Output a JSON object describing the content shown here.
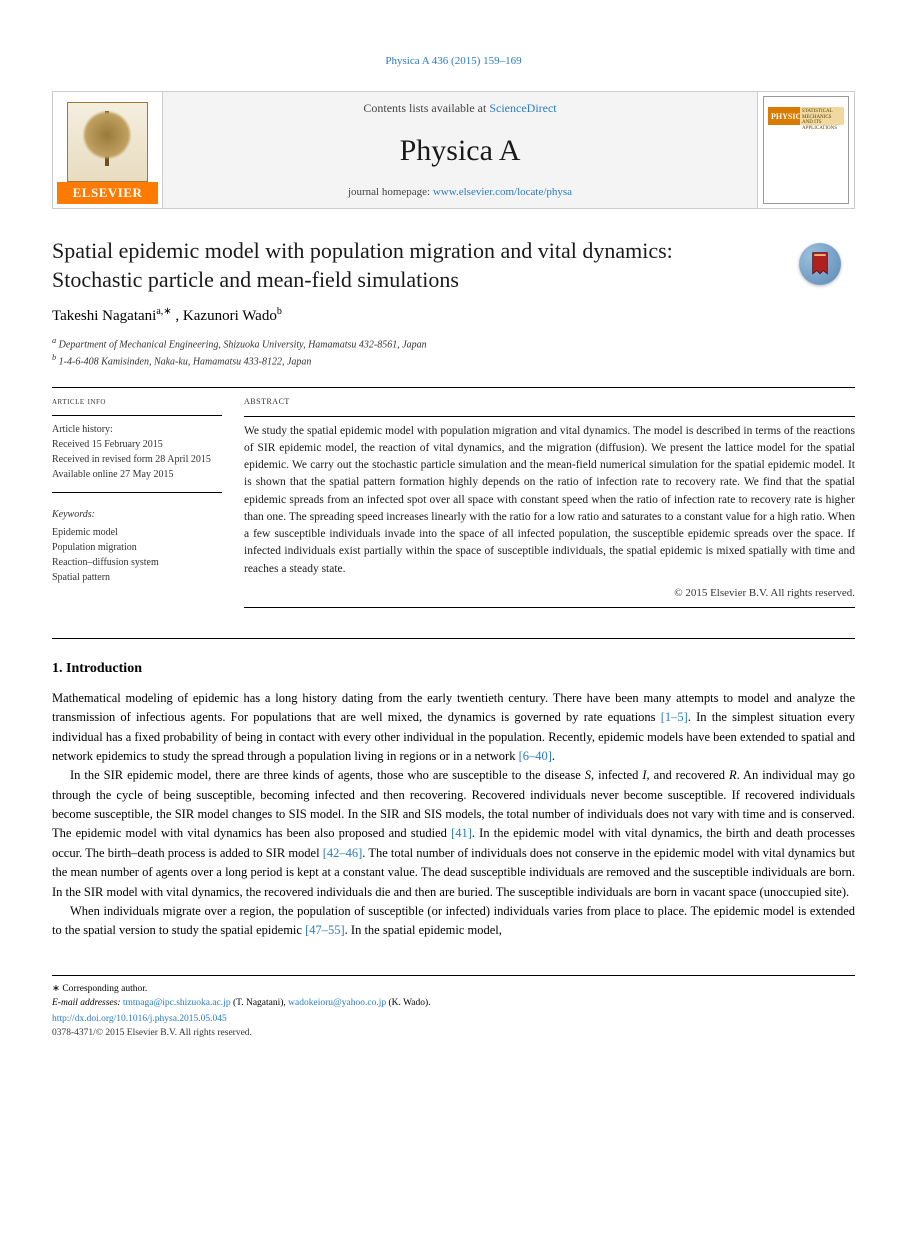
{
  "citation": "Physica A 436 (2015) 159–169",
  "header": {
    "contents_prefix": "Contents lists available at ",
    "contents_link": "ScienceDirect",
    "journal_name": "Physica A",
    "homepage_prefix": "journal homepage: ",
    "homepage_link": "www.elsevier.com/locate/physa",
    "elsevier_label": "ELSEVIER",
    "cover_label": "PHYSICA",
    "cover_sub": "STATISTICAL MECHANICS AND ITS APPLICATIONS"
  },
  "title": "Spatial epidemic model with population migration and vital dynamics: Stochastic particle and mean-field simulations",
  "authors": [
    {
      "name": "Takeshi Nagatani",
      "aff": "a",
      "corr": true
    },
    {
      "name": "Kazunori Wado",
      "aff": "b"
    }
  ],
  "affiliations": [
    {
      "label": "a",
      "text": "Department of Mechanical Engineering, Shizuoka University, Hamamatsu 432-8561, Japan"
    },
    {
      "label": "b",
      "text": "1-4-6-408 Kamisinden, Naka-ku, Hamamatsu 433-8122, Japan"
    }
  ],
  "history": {
    "head": "article info",
    "items": [
      "Article history:",
      "Received 15 February 2015",
      "Received in revised form 28 April 2015",
      "Available online 27 May 2015"
    ],
    "keywords_head": "Keywords:",
    "keywords": [
      "Epidemic model",
      "Population migration",
      "Reaction–diffusion system",
      "Spatial pattern"
    ]
  },
  "abstract": {
    "head": "abstract",
    "text": "We study the spatial epidemic model with population migration and vital dynamics. The model is described in terms of the reactions of SIR epidemic model, the reaction of vital dynamics, and the migration (diffusion). We present the lattice model for the spatial epidemic. We carry out the stochastic particle simulation and the mean-field numerical simulation for the spatial epidemic model. It is shown that the spatial pattern formation highly depends on the ratio of infection rate to recovery rate. We find that the spatial epidemic spreads from an infected spot over all space with constant speed when the ratio of infection rate to recovery rate is higher than one. The spreading speed increases linearly with the ratio for a low ratio and saturates to a constant value for a high ratio. When a few susceptible individuals invade into the space of all infected population, the susceptible epidemic spreads over the space. If infected individuals exist partially within the space of susceptible individuals, the spatial epidemic is mixed spatially with time and reaches a steady state."
  },
  "rights": "© 2015 Elsevier B.V. All rights reserved.",
  "section": {
    "head": "1. Introduction",
    "paragraphs": [
      {
        "indent": false,
        "segments": [
          {
            "t": "Mathematical modeling of epidemic has a long history dating from the early twentieth century. There have been many attempts to model and analyze the transmission of infectious agents. For populations that are well mixed, the dynamics is governed by rate equations "
          },
          {
            "ref": "[1–5]"
          },
          {
            "t": ". In the simplest situation every individual has a fixed probability of being in contact with every other individual in the population. Recently, epidemic models have been extended to spatial and network epidemics to study the spread through a population living in regions or in a network "
          },
          {
            "ref": "[6–40]"
          },
          {
            "t": "."
          }
        ]
      },
      {
        "indent": true,
        "segments": [
          {
            "t": "In the SIR epidemic model, there are three kinds of agents, those who are susceptible to the disease "
          },
          {
            "i": "S"
          },
          {
            "t": ", infected "
          },
          {
            "i": "I"
          },
          {
            "t": ", and recovered "
          },
          {
            "i": "R"
          },
          {
            "t": ". An individual may go through the cycle of being susceptible, becoming infected and then recovering. Recovered individuals never become susceptible. If recovered individuals become susceptible, the SIR model changes to SIS model. In the SIR and SIS models, the total number of individuals does not vary with time and is conserved. The epidemic model with vital dynamics has been also proposed and studied "
          },
          {
            "ref": "[41]"
          },
          {
            "t": ". In the epidemic model with vital dynamics, the birth and death processes occur. The birth–death process is added to SIR model "
          },
          {
            "ref": "[42–46]"
          },
          {
            "t": ". The total number of individuals does not conserve in the epidemic model with vital dynamics but the mean number of agents over a long period is kept at a constant value. The dead susceptible individuals are removed and the susceptible individuals are born. In the SIR model with vital dynamics, the recovered individuals die and then are buried. The susceptible individuals are born in vacant space (unoccupied site)."
          }
        ]
      },
      {
        "indent": true,
        "segments": [
          {
            "t": "When individuals migrate over a region, the population of susceptible (or infected) individuals varies from place to place. The epidemic model is extended to the spatial version to study the spatial epidemic "
          },
          {
            "ref": "[47–55]"
          },
          {
            "t": ". In the spatial epidemic model,"
          }
        ]
      }
    ]
  },
  "footer": {
    "corr": "∗ Corresponding author.",
    "email_label": "E-mail addresses:",
    "emails": [
      {
        "addr": "tmtnaga@ipc.shizuoka.ac.jp",
        "who": " (T. Nagatani), "
      },
      {
        "addr": "wadokeioru@yahoo.co.jp",
        "who": " (K. Wado)."
      }
    ],
    "doi": "http://dx.doi.org/10.1016/j.physa.2015.05.045",
    "copyright": "0378-4371/© 2015 Elsevier B.V. All rights reserved."
  }
}
